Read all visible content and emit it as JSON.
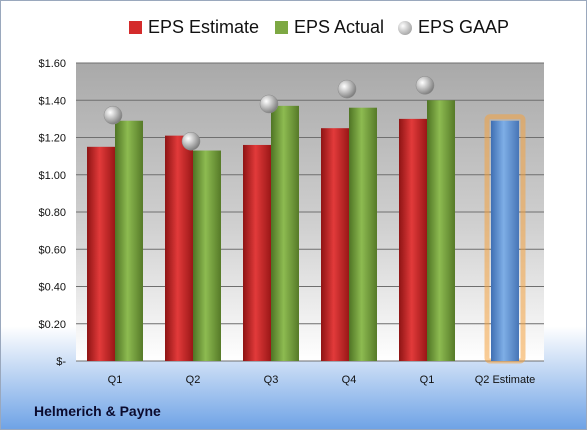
{
  "company": "Helmerich & Payne",
  "legend": {
    "estimate": "EPS Estimate",
    "actual": "EPS Actual",
    "gaap": "EPS GAAP"
  },
  "colors": {
    "estimate": "#d42b2b",
    "actual": "#7da843",
    "gaap": "#b0b0b0",
    "forecast": "#6a9fdb",
    "forecast_glow": "#f4a340"
  },
  "chart_data": {
    "type": "bar",
    "categories": [
      "Q1",
      "Q2",
      "Q3",
      "Q4",
      "Q1",
      "Q2 Estimate"
    ],
    "series": [
      {
        "name": "EPS Estimate",
        "values": [
          1.15,
          1.21,
          1.16,
          1.25,
          1.3,
          null
        ]
      },
      {
        "name": "EPS Actual",
        "values": [
          1.29,
          1.13,
          1.37,
          1.36,
          1.4,
          null
        ]
      },
      {
        "name": "EPS GAAP",
        "values": [
          1.32,
          1.18,
          1.38,
          1.46,
          1.48,
          null
        ]
      },
      {
        "name": "Q2 Estimate",
        "values": [
          null,
          null,
          null,
          null,
          null,
          1.29
        ]
      }
    ],
    "ylim": [
      0,
      1.6
    ],
    "y_ticks": [
      "$-",
      "$0.20",
      "$0.40",
      "$0.60",
      "$0.80",
      "$1.00",
      "$1.20",
      "$1.40",
      "$1.60"
    ],
    "y_tick_values": [
      0,
      0.2,
      0.4,
      0.6,
      0.8,
      1.0,
      1.2,
      1.4,
      1.6
    ],
    "grid": true,
    "legend_position": "top"
  }
}
